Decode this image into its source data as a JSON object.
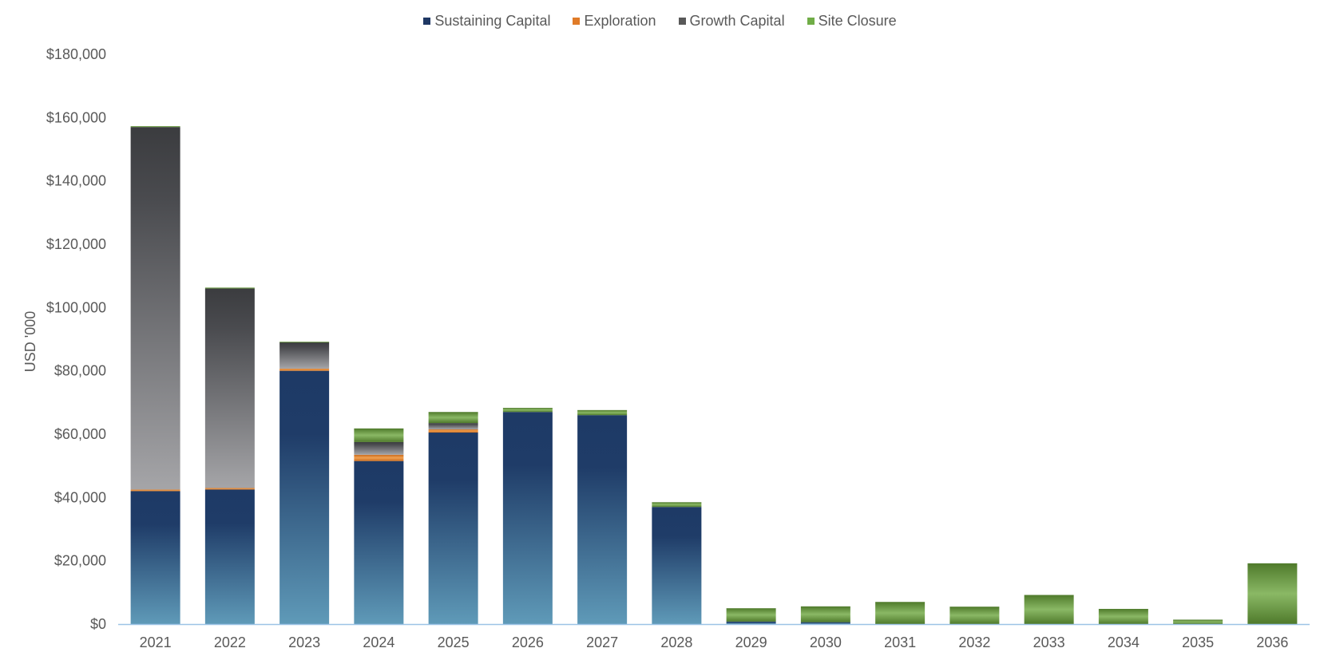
{
  "chart_data": {
    "type": "bar",
    "stacked": true,
    "title": "",
    "xlabel": "",
    "ylabel": "USD '000",
    "ylim": [
      0,
      180000
    ],
    "yticks": [
      0,
      20000,
      40000,
      60000,
      80000,
      100000,
      120000,
      140000,
      160000,
      180000
    ],
    "ytick_labels": [
      "$0",
      "$20,000",
      "$40,000",
      "$60,000",
      "$80,000",
      "$100,000",
      "$120,000",
      "$140,000",
      "$160,000",
      "$180,000"
    ],
    "grid": false,
    "legend_position": "top-center",
    "categories": [
      "2021",
      "2022",
      "2023",
      "2024",
      "2025",
      "2026",
      "2027",
      "2028",
      "2029",
      "2030",
      "2031",
      "2032",
      "2033",
      "2034",
      "2035",
      "2036"
    ],
    "series": [
      {
        "name": "Sustaining Capital",
        "color": "#1f3864",
        "values": [
          42000,
          42500,
          80000,
          51500,
          60500,
          67000,
          66000,
          37000,
          800,
          600,
          0,
          0,
          0,
          0,
          0,
          0
        ]
      },
      {
        "name": "Exploration",
        "color": "#e07b28",
        "values": [
          500,
          500,
          700,
          2000,
          1000,
          0,
          0,
          0,
          0,
          0,
          0,
          0,
          0,
          0,
          0,
          0
        ]
      },
      {
        "name": "Growth Capital",
        "color": "#595959",
        "values": [
          114500,
          63000,
          8300,
          4000,
          2000,
          0,
          0,
          0,
          0,
          0,
          0,
          0,
          0,
          0,
          0,
          0
        ]
      },
      {
        "name": "Site Closure",
        "color": "#70ad47",
        "values": [
          300,
          300,
          200,
          4300,
          3500,
          1300,
          1600,
          1500,
          4200,
          5000,
          7000,
          5500,
          9200,
          4800,
          1400,
          19200
        ]
      }
    ]
  }
}
